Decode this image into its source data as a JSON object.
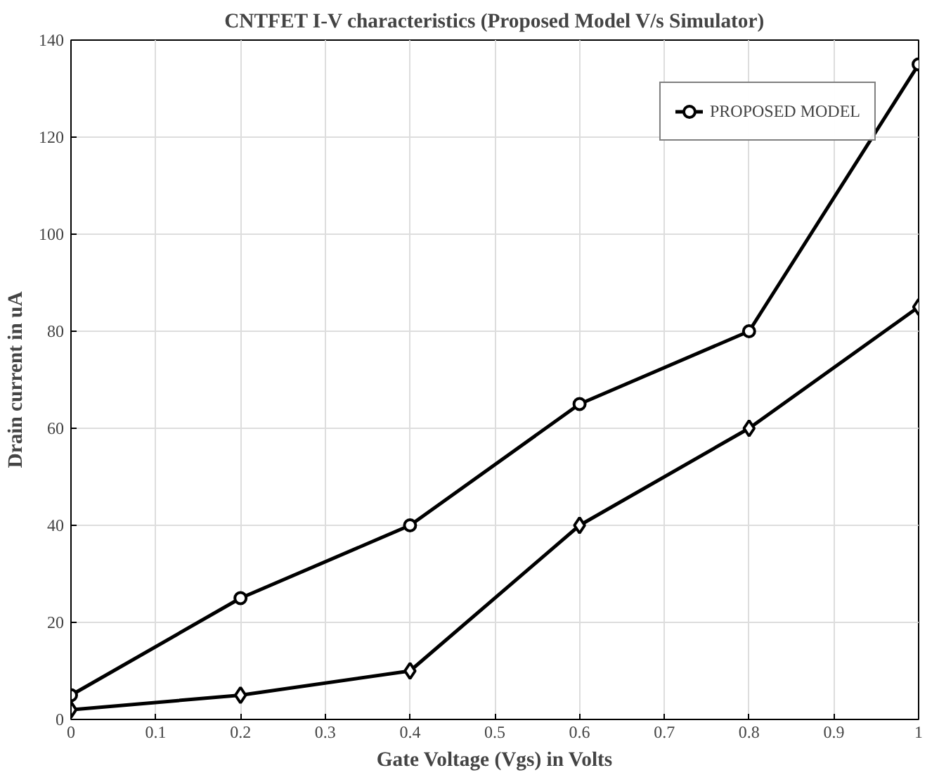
{
  "chart_data": {
    "type": "line",
    "title": "CNTFET I-V characteristics (Proposed Model V/s Simulator)",
    "xlabel": "Gate Voltage (Vgs) in Volts",
    "ylabel": "Drain current in uA",
    "x": [
      0,
      0.2,
      0.4,
      0.6,
      0.8,
      1
    ],
    "series": [
      {
        "name": "PROPOSED MODEL",
        "color": "#000000",
        "marker": "circle",
        "values": [
          5,
          25,
          40,
          65,
          80,
          135
        ]
      },
      {
        "color": "#000000",
        "marker": "diamond",
        "values": [
          2,
          5,
          10,
          40,
          60,
          85
        ]
      }
    ],
    "xlim": [
      0,
      1
    ],
    "xticks": [
      0,
      0.1,
      0.2,
      0.3,
      0.4,
      0.5,
      0.6,
      0.7,
      0.8,
      0.9,
      1
    ],
    "ylim": [
      0,
      140
    ],
    "yticks": [
      0,
      20,
      40,
      60,
      80,
      100,
      120,
      140
    ],
    "grid": true,
    "legend": "top right",
    "line_style": "solid"
  }
}
